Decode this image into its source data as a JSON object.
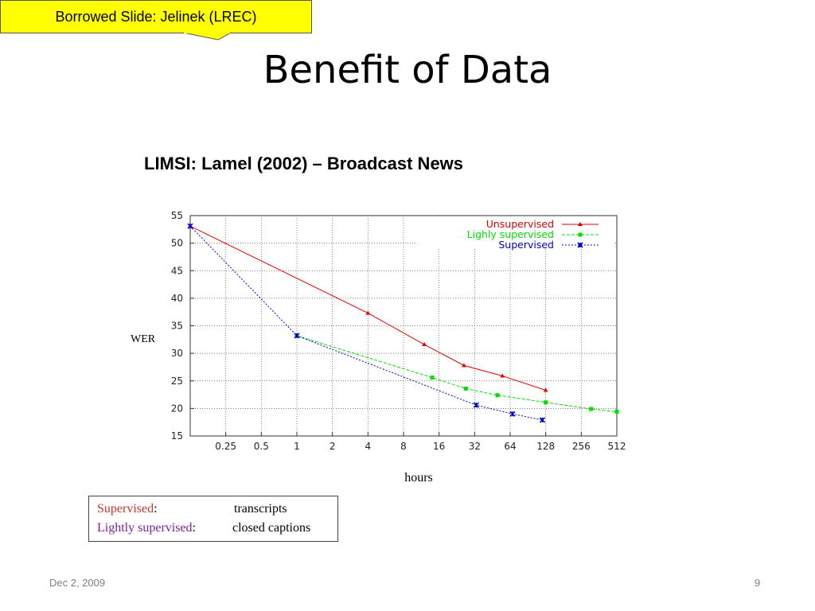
{
  "slide": {
    "callout": "Borrowed Slide: Jelinek (LREC)",
    "title": "Benefit of Data",
    "subtitle": "LIMSI: Lamel (2002) – Broadcast News",
    "notes": {
      "row1_term": "Supervised",
      "row1_colon": ":",
      "row1_value": "transcripts",
      "row2_term": "Lightly supervised",
      "row2_colon": ":",
      "row2_value": "closed captions"
    },
    "footer_date": "Dec 2, 2009",
    "page_number": "9"
  },
  "colors": {
    "callout_bg": "#ffff00",
    "unsupervised": "#e00000",
    "lightly": "#00dd00",
    "supervised": "#0000cc",
    "grid": "#555555"
  },
  "chart_data": {
    "type": "line",
    "xlabel": "hours",
    "ylabel": "WER",
    "x_scale": "log2",
    "x_ticks": [
      0.25,
      0.5,
      1,
      2,
      4,
      8,
      16,
      32,
      64,
      128,
      256,
      512
    ],
    "x_tick_labels": [
      "0.25",
      "0.5",
      "1",
      "2",
      "4",
      "8",
      "16",
      "32",
      "64",
      "128",
      "256",
      "512"
    ],
    "xlim": [
      0.125,
      512
    ],
    "y_ticks": [
      15,
      20,
      25,
      30,
      35,
      40,
      45,
      50,
      55
    ],
    "ylim": [
      15,
      55
    ],
    "grid": true,
    "legend_position": "top-right",
    "series": [
      {
        "name": "Unsupervised",
        "color": "#e00000",
        "marker": "triangle",
        "dash": "solid",
        "points": [
          [
            0.125,
            53.1
          ],
          [
            4,
            37.3
          ],
          [
            12,
            31.6
          ],
          [
            26,
            27.8
          ],
          [
            55,
            25.9
          ],
          [
            128,
            23.3
          ]
        ]
      },
      {
        "name": "Lighly supervised",
        "color": "#00dd00",
        "marker": "square",
        "dash": "dashed",
        "points": [
          [
            1,
            33.2
          ],
          [
            14,
            25.6
          ],
          [
            27,
            23.6
          ],
          [
            50,
            22.4
          ],
          [
            128,
            21.1
          ],
          [
            310,
            19.9
          ],
          [
            512,
            19.4
          ]
        ]
      },
      {
        "name": "Supervised",
        "color": "#0000cc",
        "marker": "star",
        "dash": "dotted",
        "points": [
          [
            0.125,
            53.1
          ],
          [
            1,
            33.2
          ],
          [
            33,
            20.6
          ],
          [
            67,
            19.0
          ],
          [
            120,
            17.9
          ]
        ]
      }
    ]
  }
}
